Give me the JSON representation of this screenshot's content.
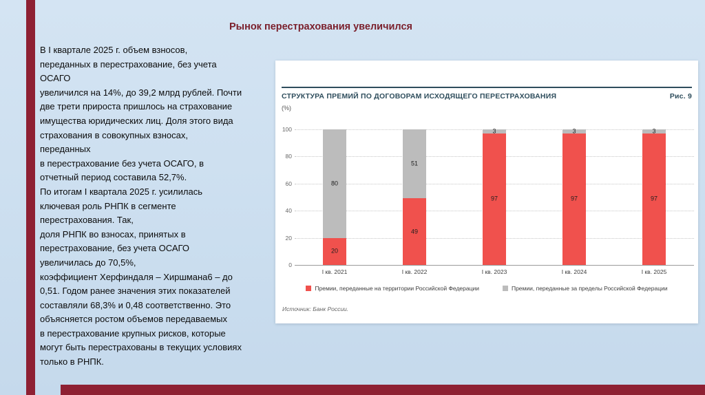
{
  "slide": {
    "title": "Рынок перестрахования увеличился",
    "body_text": "В I квартале 2025 г. объем взносов,\nпереданных в перестрахование, без учета\nОСАГО\nувеличился на 14%, до 39,2 млрд рублей. Почти\nдве трети прироста пришлось на страхование\nимущества юридических лиц. Доля этого вида\nстрахования в совокупных взносах,\nпереданных\nв перестрахование без учета ОСАГО, в\nотчетный период составила 52,7%.\nПо итогам I квартала 2025 г. усилилась\nключевая роль РНПК в сегменте\nперестрахования. Так,\nдоля РНПК во взносах, принятых в\nперестрахование, без учета ОСАГО\nувеличилась до 70,5%,\nкоэффициент Херфиндаля – Хиршмана6 – до\n0,51. Годом ранее значения этих показателей\nсоставляли 68,3% и 0,48 соответственно. Это\nобъясняется ростом объемов передаваемых\nв перестрахование крупных рисков, которые\nмогут быть перестрахованы в текущих условиях\nтолько в РНПК."
  },
  "chart_data": {
    "type": "bar",
    "stacked": true,
    "title": "СТРУКТУРА ПРЕМИЙ ПО ДОГОВОРАМ ИСХОДЯЩЕГО ПЕРЕСТРАХОВАНИЯ",
    "figure_label": "Рис. 9",
    "unit": "(%)",
    "categories": [
      "I кв. 2021",
      "I кв. 2022",
      "I кв. 2023",
      "I кв. 2024",
      "I кв. 2025"
    ],
    "series": [
      {
        "name": "Премии, переданные на территории Российской Федерации",
        "color": "#f0514d",
        "values": [
          20,
          49,
          97,
          97,
          97
        ]
      },
      {
        "name": "Премии, переданные за пределы Российской Федерации",
        "color": "#bcbcbc",
        "values": [
          80,
          51,
          3,
          3,
          3
        ]
      }
    ],
    "ylim": [
      0,
      100
    ],
    "yticks": [
      0,
      20,
      40,
      60,
      80,
      100
    ],
    "grid": "horizontal-dotted",
    "legend_position": "bottom",
    "source": "Источник: Банк России."
  },
  "theme": {
    "background": "#cbdeef",
    "accent_bar_color": "#8e2033",
    "title_color": "#7a1f2b",
    "chart_header_color": "#2e4d5c",
    "bar_red": "#f0514d",
    "bar_gray": "#bcbcbc"
  }
}
